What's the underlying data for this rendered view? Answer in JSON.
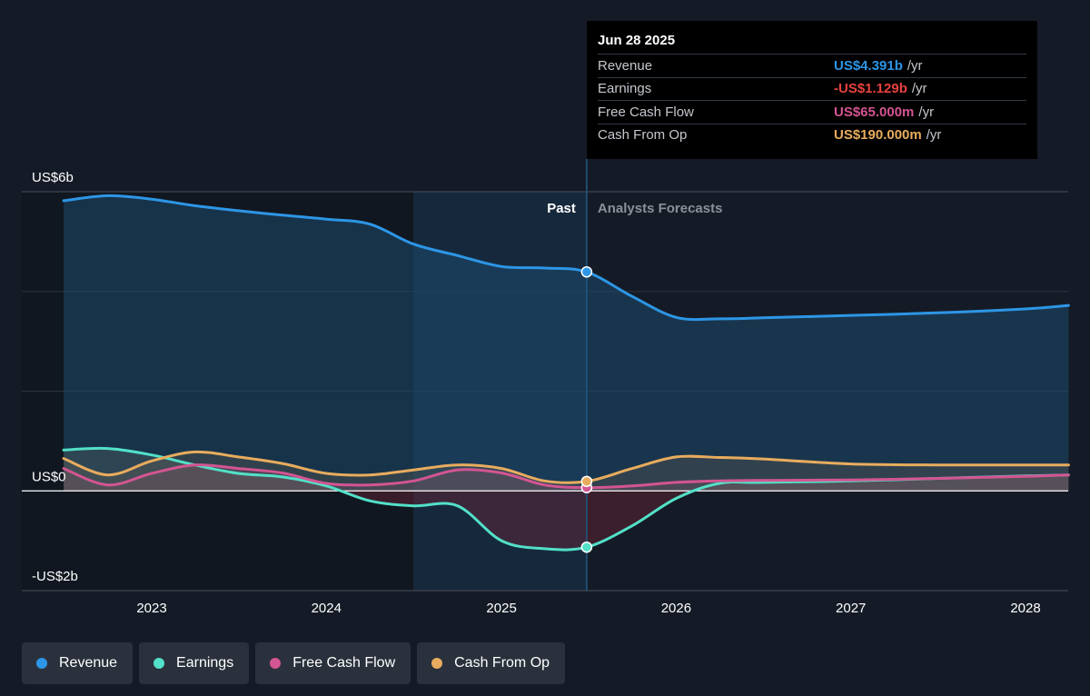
{
  "chart_data": {
    "type": "line",
    "title": "",
    "xlabel": "",
    "ylabel": "",
    "x_ticks": [
      "2023",
      "2024",
      "2025",
      "2026",
      "2027",
      "2028"
    ],
    "y_tick_labels": [
      "US$6b",
      "US$0",
      "-US$2b"
    ],
    "ylim": [
      -2,
      6
    ],
    "grid": true,
    "legend_position": "bottom-left",
    "past_label": "Past",
    "forecast_label": "Analysts Forecasts",
    "divider_date": "2025-06-28",
    "series": [
      {
        "name": "Revenue",
        "color": "#2d96e6",
        "points": [
          [
            "2022-07-01",
            5.82
          ],
          [
            "2022-10-01",
            5.92
          ],
          [
            "2023-01-01",
            5.85
          ],
          [
            "2023-04-01",
            5.72
          ],
          [
            "2023-07-01",
            5.62
          ],
          [
            "2023-10-01",
            5.53
          ],
          [
            "2024-01-01",
            5.45
          ],
          [
            "2024-04-01",
            5.35
          ],
          [
            "2024-07-01",
            4.95
          ],
          [
            "2024-10-01",
            4.72
          ],
          [
            "2025-01-01",
            4.5
          ],
          [
            "2025-04-01",
            4.47
          ],
          [
            "2025-06-28",
            4.391
          ],
          [
            "2025-10-01",
            3.9
          ],
          [
            "2026-01-01",
            3.48
          ],
          [
            "2026-04-01",
            3.45
          ],
          [
            "2026-07-01",
            3.47
          ],
          [
            "2027-01-01",
            3.52
          ],
          [
            "2027-07-01",
            3.57
          ],
          [
            "2028-01-01",
            3.65
          ],
          [
            "2028-03-31",
            3.72
          ]
        ]
      },
      {
        "name": "Earnings",
        "color": "#52e0c8",
        "points": [
          [
            "2022-07-01",
            0.82
          ],
          [
            "2022-10-01",
            0.85
          ],
          [
            "2023-01-01",
            0.72
          ],
          [
            "2023-04-01",
            0.52
          ],
          [
            "2023-07-01",
            0.35
          ],
          [
            "2023-10-01",
            0.28
          ],
          [
            "2024-01-01",
            0.1
          ],
          [
            "2024-04-01",
            -0.2
          ],
          [
            "2024-07-01",
            -0.3
          ],
          [
            "2024-10-01",
            -0.3
          ],
          [
            "2025-01-01",
            -1.0
          ],
          [
            "2025-04-01",
            -1.16
          ],
          [
            "2025-06-28",
            -1.129
          ],
          [
            "2025-10-01",
            -0.7
          ],
          [
            "2026-01-01",
            -0.15
          ],
          [
            "2026-04-01",
            0.15
          ],
          [
            "2026-07-01",
            0.17
          ],
          [
            "2027-01-01",
            0.2
          ],
          [
            "2027-07-01",
            0.25
          ],
          [
            "2028-01-01",
            0.3
          ],
          [
            "2028-03-31",
            0.32
          ]
        ]
      },
      {
        "name": "Free Cash Flow",
        "color": "#d35592",
        "points": [
          [
            "2022-07-01",
            0.45
          ],
          [
            "2022-10-01",
            0.12
          ],
          [
            "2023-01-01",
            0.35
          ],
          [
            "2023-04-01",
            0.52
          ],
          [
            "2023-07-01",
            0.45
          ],
          [
            "2023-10-01",
            0.36
          ],
          [
            "2024-01-01",
            0.15
          ],
          [
            "2024-04-01",
            0.12
          ],
          [
            "2024-07-01",
            0.2
          ],
          [
            "2024-10-01",
            0.42
          ],
          [
            "2025-01-01",
            0.36
          ],
          [
            "2025-04-01",
            0.12
          ],
          [
            "2025-06-28",
            0.065
          ],
          [
            "2025-10-01",
            0.1
          ],
          [
            "2026-01-01",
            0.17
          ],
          [
            "2026-04-01",
            0.2
          ],
          [
            "2026-07-01",
            0.21
          ],
          [
            "2027-01-01",
            0.22
          ],
          [
            "2027-07-01",
            0.25
          ],
          [
            "2028-01-01",
            0.29
          ],
          [
            "2028-03-31",
            0.32
          ]
        ]
      },
      {
        "name": "Cash From Op",
        "color": "#e8ac5e",
        "points": [
          [
            "2022-07-01",
            0.65
          ],
          [
            "2022-10-01",
            0.32
          ],
          [
            "2023-01-01",
            0.6
          ],
          [
            "2023-04-01",
            0.78
          ],
          [
            "2023-07-01",
            0.68
          ],
          [
            "2023-10-01",
            0.55
          ],
          [
            "2024-01-01",
            0.35
          ],
          [
            "2024-04-01",
            0.32
          ],
          [
            "2024-07-01",
            0.42
          ],
          [
            "2024-10-01",
            0.52
          ],
          [
            "2025-01-01",
            0.45
          ],
          [
            "2025-04-01",
            0.2
          ],
          [
            "2025-06-28",
            0.19
          ],
          [
            "2025-10-01",
            0.45
          ],
          [
            "2026-01-01",
            0.68
          ],
          [
            "2026-04-01",
            0.67
          ],
          [
            "2026-07-01",
            0.64
          ],
          [
            "2027-01-01",
            0.54
          ],
          [
            "2027-07-01",
            0.52
          ],
          [
            "2028-01-01",
            0.52
          ],
          [
            "2028-03-31",
            0.52
          ]
        ]
      }
    ]
  },
  "tooltip": {
    "date": "Jun 28 2025",
    "rows": [
      {
        "label": "Revenue",
        "value": "US$4.391b",
        "unit": "/yr",
        "color": "#2d96e6"
      },
      {
        "label": "Earnings",
        "value": "-US$1.129b",
        "unit": "/yr",
        "color": "#e8423f"
      },
      {
        "label": "Free Cash Flow",
        "value": "US$65.000m",
        "unit": "/yr",
        "color": "#d35592"
      },
      {
        "label": "Cash From Op",
        "value": "US$190.000m",
        "unit": "/yr",
        "color": "#e8ac5e"
      }
    ]
  },
  "legend": [
    {
      "label": "Revenue",
      "color": "#2d96e6"
    },
    {
      "label": "Earnings",
      "color": "#52e0c8"
    },
    {
      "label": "Free Cash Flow",
      "color": "#d35592"
    },
    {
      "label": "Cash From Op",
      "color": "#e8ac5e"
    }
  ]
}
